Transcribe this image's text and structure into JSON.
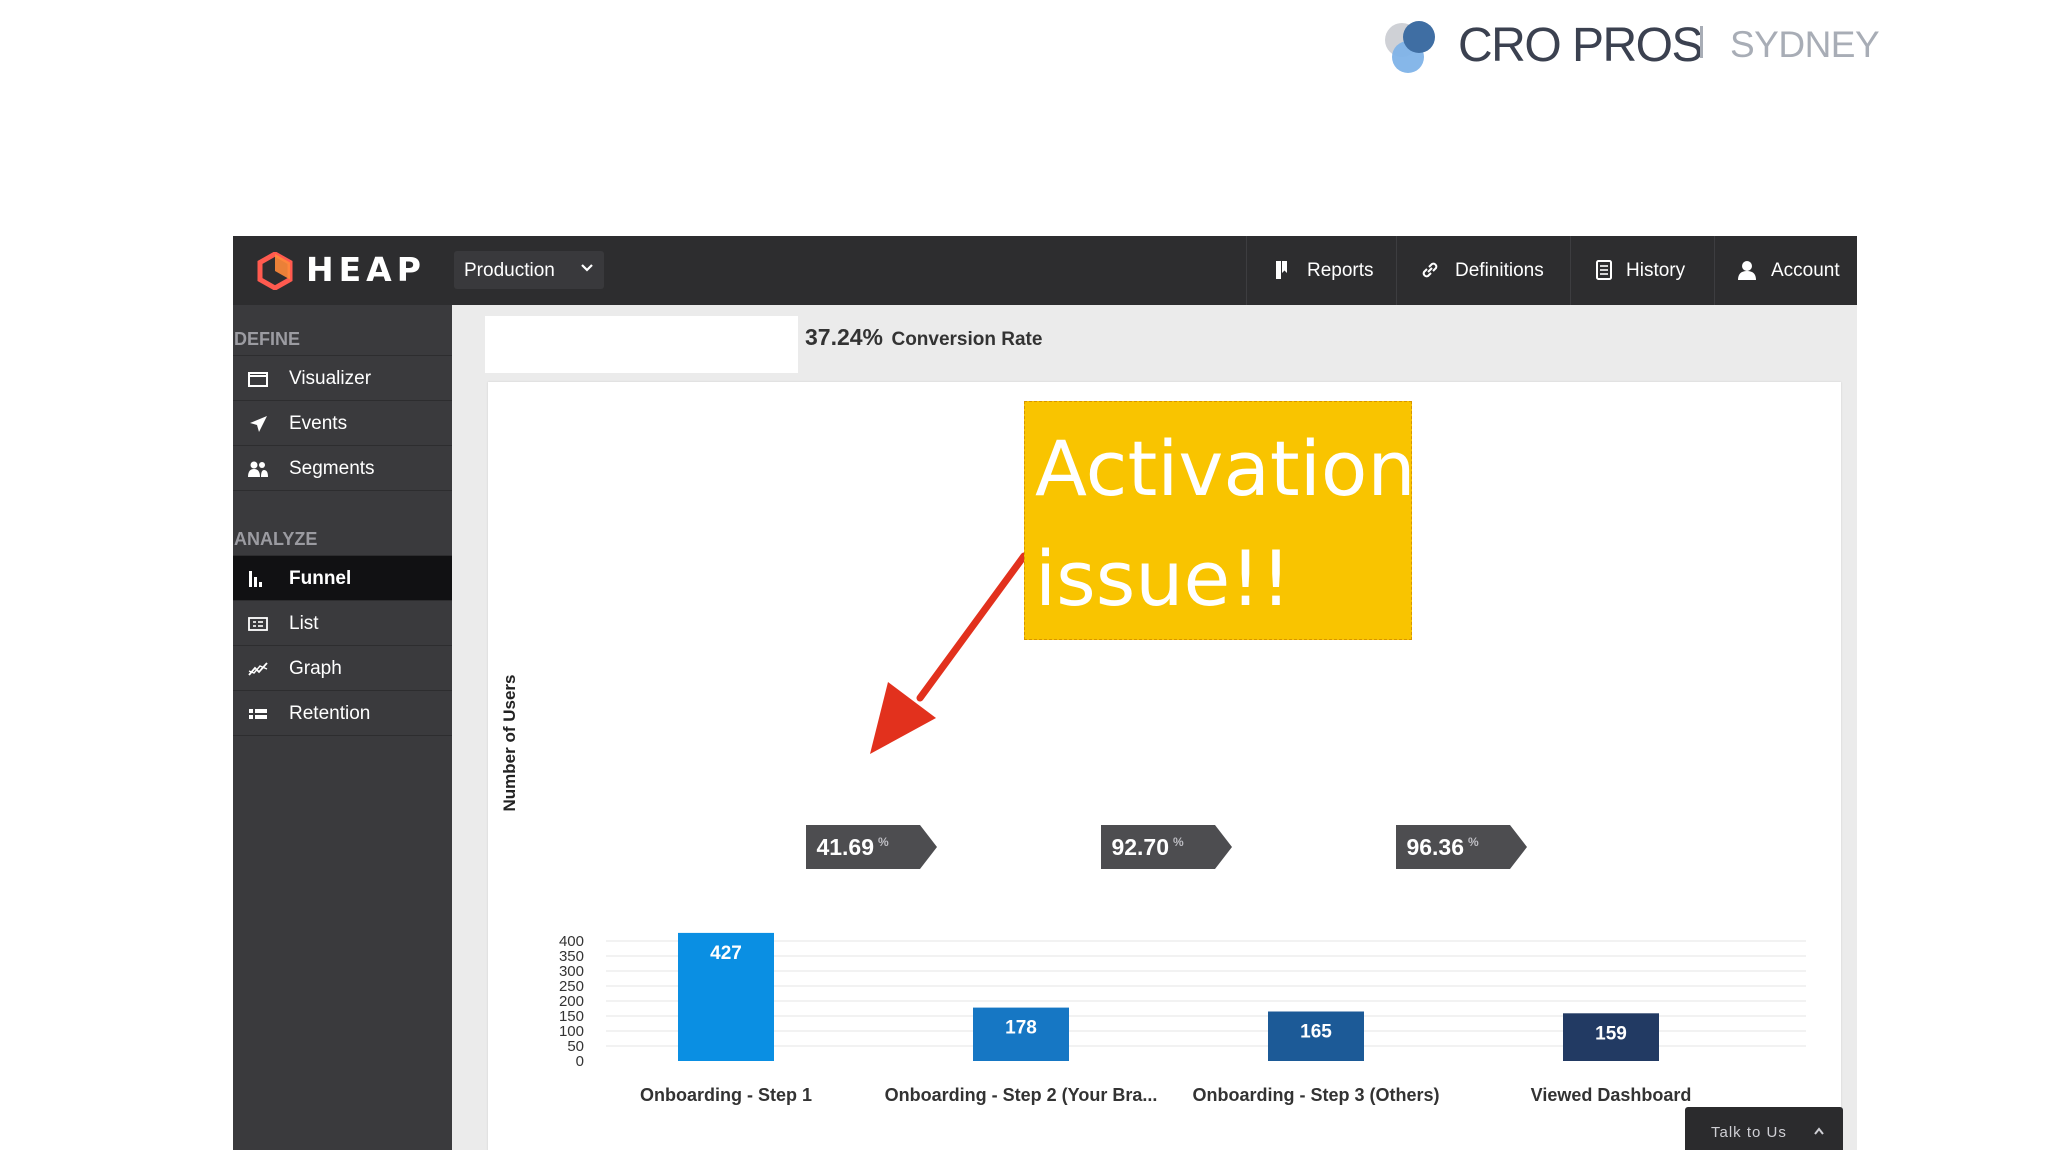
{
  "branding": {
    "brand": "CRO PROS",
    "city": "SYDNEY",
    "colors": {
      "dark_blue": "#3f6ea3",
      "light_blue": "#7fb3e8",
      "text": "#3b4150"
    }
  },
  "topbar": {
    "logo": "HEAP",
    "environment": "Production",
    "nav": [
      {
        "label": "Reports",
        "icon": "bookmark-icon"
      },
      {
        "label": "Definitions",
        "icon": "link-icon"
      },
      {
        "label": "History",
        "icon": "document-icon"
      },
      {
        "label": "Account",
        "icon": "user-icon"
      }
    ]
  },
  "sidebar": {
    "define_label": "DEFINE",
    "define_items": [
      {
        "label": "Visualizer",
        "icon": "window-icon"
      },
      {
        "label": "Events",
        "icon": "cursor-arrow-icon"
      },
      {
        "label": "Segments",
        "icon": "users-icon"
      }
    ],
    "analyze_label": "ANALYZE",
    "analyze_items": [
      {
        "label": "Funnel",
        "icon": "bar-chart-icon",
        "active": true
      },
      {
        "label": "List",
        "icon": "list-icon"
      },
      {
        "label": "Graph",
        "icon": "line-chart-icon"
      },
      {
        "label": "Retention",
        "icon": "grid-icon"
      }
    ]
  },
  "summary": {
    "conversion_value": "37.24%",
    "conversion_label": "Conversion Rate"
  },
  "chart_data": {
    "type": "bar",
    "ylabel": "Number of Users",
    "ylim": [
      0,
      450
    ],
    "yticks": [
      0,
      50,
      100,
      150,
      200,
      250,
      300,
      350,
      400
    ],
    "grid": true,
    "categories": [
      "Onboarding - Step 1",
      "Onboarding - Step 2 (Your Bra...",
      "Onboarding - Step 3 (Others)",
      "Viewed Dashboard"
    ],
    "values": [
      427,
      178,
      165,
      159
    ],
    "bar_colors": [
      "#0a8fe3",
      "#1677c4",
      "#1c5a97",
      "#223a63"
    ],
    "step_conversions": [
      {
        "value": "41.69",
        "unit": "%"
      },
      {
        "value": "92.70",
        "unit": "%"
      },
      {
        "value": "96.36",
        "unit": "%"
      }
    ]
  },
  "talk_button": {
    "label": "Talk to Us"
  },
  "annotation": {
    "text": "Activation issue!!",
    "color": "#f9c400",
    "arrow_color": "#e2311d"
  }
}
